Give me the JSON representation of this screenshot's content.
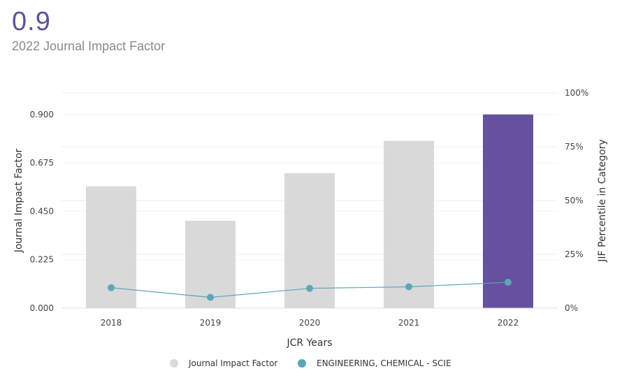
{
  "header": {
    "value": "0.9",
    "subtitle": "2022 Journal Impact Factor"
  },
  "chart_data": {
    "type": "bar",
    "categories": [
      "2018",
      "2019",
      "2020",
      "2021",
      "2022"
    ],
    "series": [
      {
        "name": "Journal Impact Factor",
        "type": "bar",
        "axis": "left",
        "values": [
          0.566,
          0.406,
          0.627,
          0.777,
          0.9
        ],
        "color": "#d9d9d9",
        "highlight_color": "#6650a0",
        "highlight_index": 4
      },
      {
        "name": "ENGINEERING, CHEMICAL - SCIE",
        "type": "line",
        "axis": "right",
        "values": [
          9.5,
          5.0,
          9.2,
          9.9,
          12.0
        ],
        "color": "#5ba7b8"
      }
    ],
    "xlabel": "JCR Years",
    "ylabel": "Journal Impact Factor",
    "y2label": "JIF Percentile in Category",
    "ylim": [
      0,
      1.0
    ],
    "yticks": [
      "0.000",
      "0.225",
      "0.450",
      "0.675",
      "0.900"
    ],
    "ytick_values": [
      0,
      0.225,
      0.45,
      0.675,
      0.9
    ],
    "y2lim": [
      0,
      100
    ],
    "y2ticks": [
      "0%",
      "25%",
      "50%",
      "75%",
      "100%"
    ],
    "y2tick_values": [
      0,
      25,
      50,
      75,
      100
    ],
    "grid": true,
    "legend": "bottom-center"
  }
}
